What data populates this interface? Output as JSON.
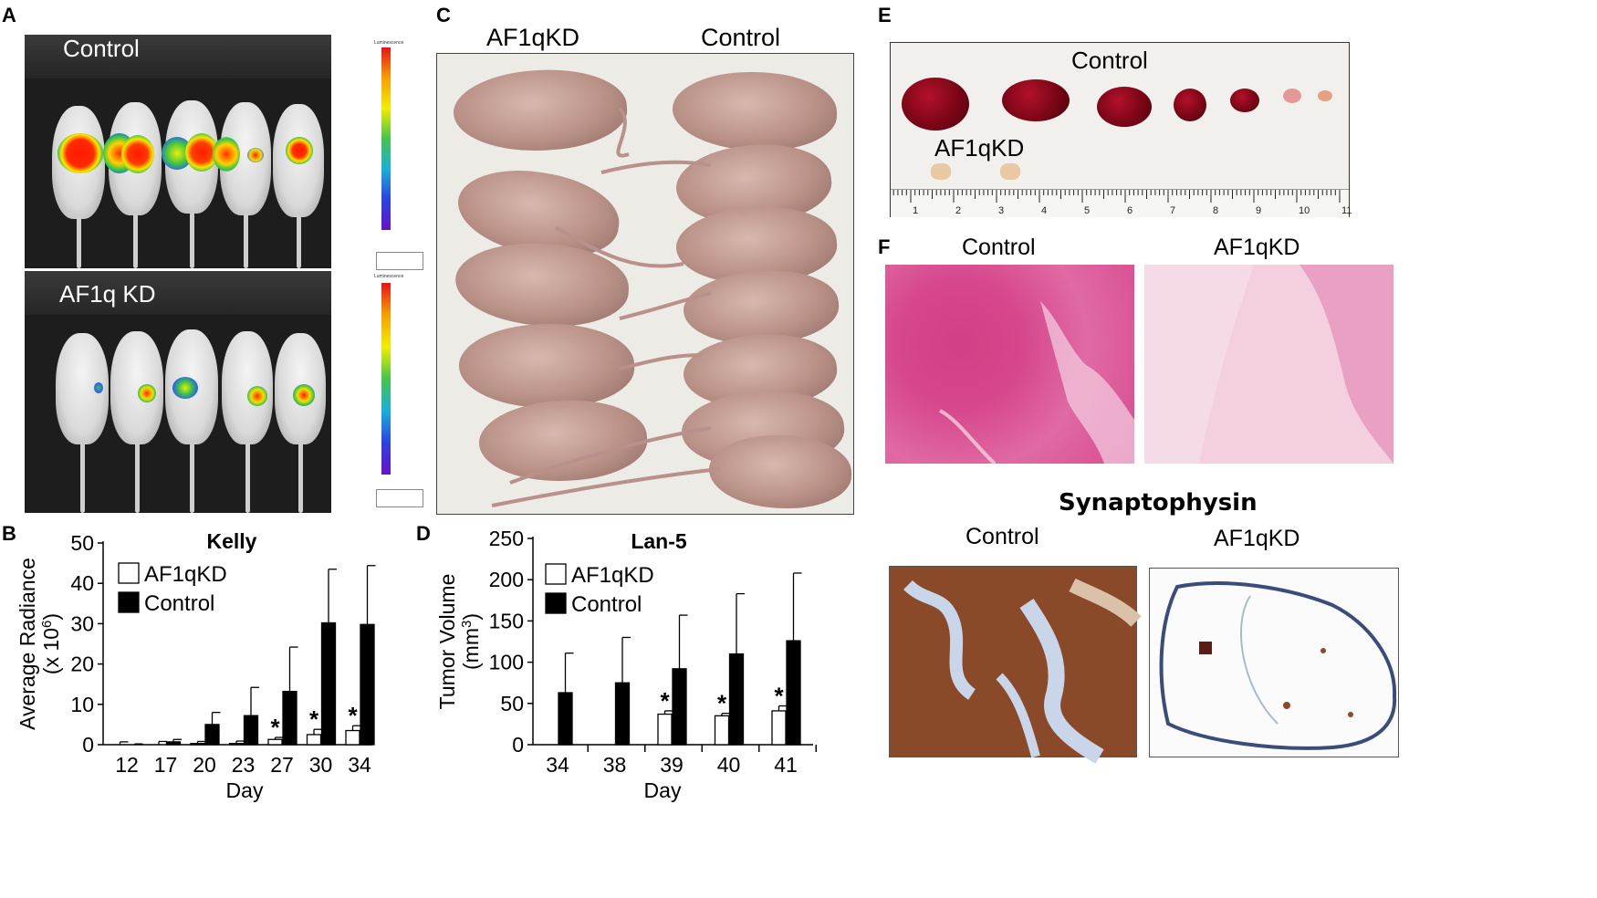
{
  "panels": {
    "a": {
      "letter": "A",
      "top_label": "Control",
      "bottom_label": "AF1q KD",
      "scale_title_1": "Luminescence",
      "scale_title_2": "Luminescence"
    },
    "c": {
      "letter": "C",
      "left_label": "AF1qKD",
      "right_label": "Control"
    },
    "e": {
      "letter": "E",
      "control_label": "Control",
      "kd_label": "AF1qKD",
      "ruler_numbers": [
        "1",
        "2",
        "3",
        "4",
        "5",
        "6",
        "7",
        "8",
        "9",
        "10",
        "11"
      ]
    },
    "f": {
      "letter": "F",
      "he_left_label": "Control",
      "he_right_label": "AF1qKD",
      "syn_title": "Synaptophysin",
      "syn_left_label": "Control",
      "syn_right_label": "AF1qKD"
    },
    "b": {
      "letter": "B"
    },
    "d": {
      "letter": "D"
    }
  },
  "colors": {
    "he_stain": "#e25a95",
    "ihc_brown": "#8a4a2a",
    "ihc_blue": "#c9d6ea"
  },
  "chart_data": [
    {
      "type": "bar",
      "title": "Kelly",
      "xlabel": "Day",
      "ylabel": "Average Radiance",
      "ylabel_unit": "(x 10",
      "ylabel_exp": "6",
      "ylabel_close": ")",
      "ylim": [
        0,
        50
      ],
      "yticks": [
        "0",
        "10",
        "20",
        "30",
        "40",
        "50"
      ],
      "categories": [
        "12",
        "17",
        "20",
        "23",
        "27",
        "30",
        "34"
      ],
      "legend_position": "top-left",
      "series": [
        {
          "name": "AF1qKD",
          "fill": "#ffffff",
          "values": [
            0,
            0,
            0.3,
            0.3,
            1.3,
            2.5,
            3.5
          ],
          "error": [
            0.7,
            0.8,
            0.5,
            0.6,
            0.5,
            1.3,
            1.2
          ],
          "significant": [
            false,
            false,
            false,
            false,
            true,
            true,
            true
          ]
        },
        {
          "name": "Control",
          "fill": "#000000",
          "values": [
            0,
            0.7,
            5,
            7.2,
            13.2,
            30.2,
            29.8
          ],
          "error": [
            0.2,
            0.6,
            3,
            7,
            11,
            13.3,
            14.6
          ],
          "significant": [
            false,
            false,
            false,
            false,
            false,
            false,
            false
          ]
        }
      ],
      "sig_marker": "*"
    },
    {
      "type": "bar",
      "title": "Lan-5",
      "xlabel": "Day",
      "ylabel": "Tumor Volume",
      "ylabel_unit": "(mm",
      "ylabel_exp": "3",
      "ylabel_close": ")",
      "ylim": [
        0,
        250
      ],
      "yticks": [
        "0",
        "50",
        "100",
        "150",
        "200",
        "250"
      ],
      "categories": [
        "34",
        "38",
        "39",
        "40",
        "41"
      ],
      "legend_position": "top-left",
      "series": [
        {
          "name": "AF1qKD",
          "fill": "#ffffff",
          "values": [
            0,
            0,
            37,
            35,
            41
          ],
          "error": [
            0,
            0,
            4,
            3,
            6
          ],
          "significant": [
            false,
            false,
            true,
            true,
            true
          ]
        },
        {
          "name": "Control",
          "fill": "#000000",
          "values": [
            63,
            75,
            92,
            110,
            126
          ],
          "error": [
            48,
            55,
            65,
            73,
            82
          ],
          "significant": [
            false,
            false,
            false,
            false,
            false
          ]
        }
      ],
      "sig_marker": "*"
    }
  ]
}
